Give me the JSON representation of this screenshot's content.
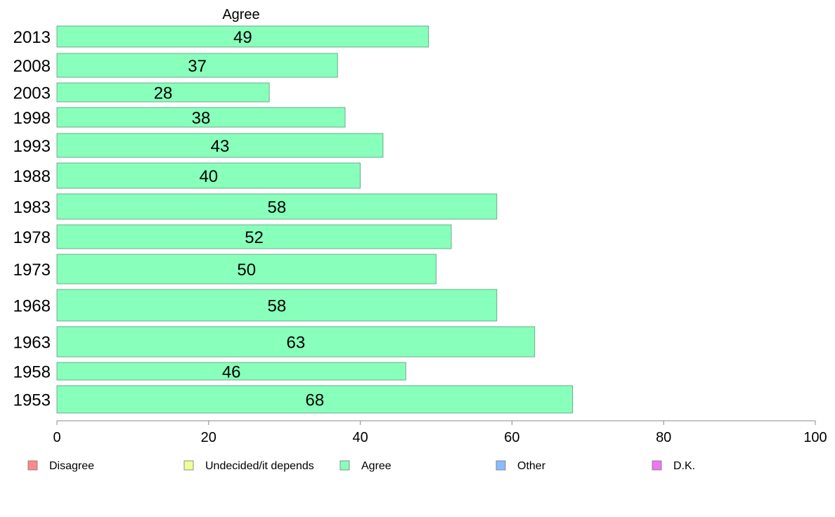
{
  "chart_data": {
    "type": "bar",
    "orientation": "horizontal",
    "column_title": "Agree",
    "categories": [
      "2013",
      "2008",
      "2003",
      "1998",
      "1993",
      "1988",
      "1983",
      "1978",
      "1973",
      "1968",
      "1963",
      "1958",
      "1953"
    ],
    "series": [
      {
        "name": "Agree",
        "color": "#88ffbb",
        "values": [
          49,
          37,
          28,
          38,
          43,
          40,
          58,
          52,
          50,
          58,
          63,
          46,
          68
        ],
        "value_labels": [
          "49",
          "37",
          "28",
          "38",
          "43",
          "40",
          "58",
          "52",
          "50",
          "58",
          "63",
          "46",
          "68"
        ]
      }
    ],
    "xlim": [
      0,
      100
    ],
    "xticks": [
      0,
      20,
      40,
      60,
      80,
      100
    ],
    "xtick_labels": [
      "0",
      "20",
      "40",
      "60",
      "80",
      "100"
    ],
    "legend": {
      "placement": "bottom",
      "items": [
        {
          "label": "Disagree",
          "color": "#ff8888"
        },
        {
          "label": "Undecided/it depends",
          "color": "#eeff99"
        },
        {
          "label": "Agree",
          "color": "#88ffbb"
        },
        {
          "label": "Other",
          "color": "#88bbff"
        },
        {
          "label": "D.K.",
          "color": "#ee77ee"
        }
      ]
    },
    "grid": false
  }
}
